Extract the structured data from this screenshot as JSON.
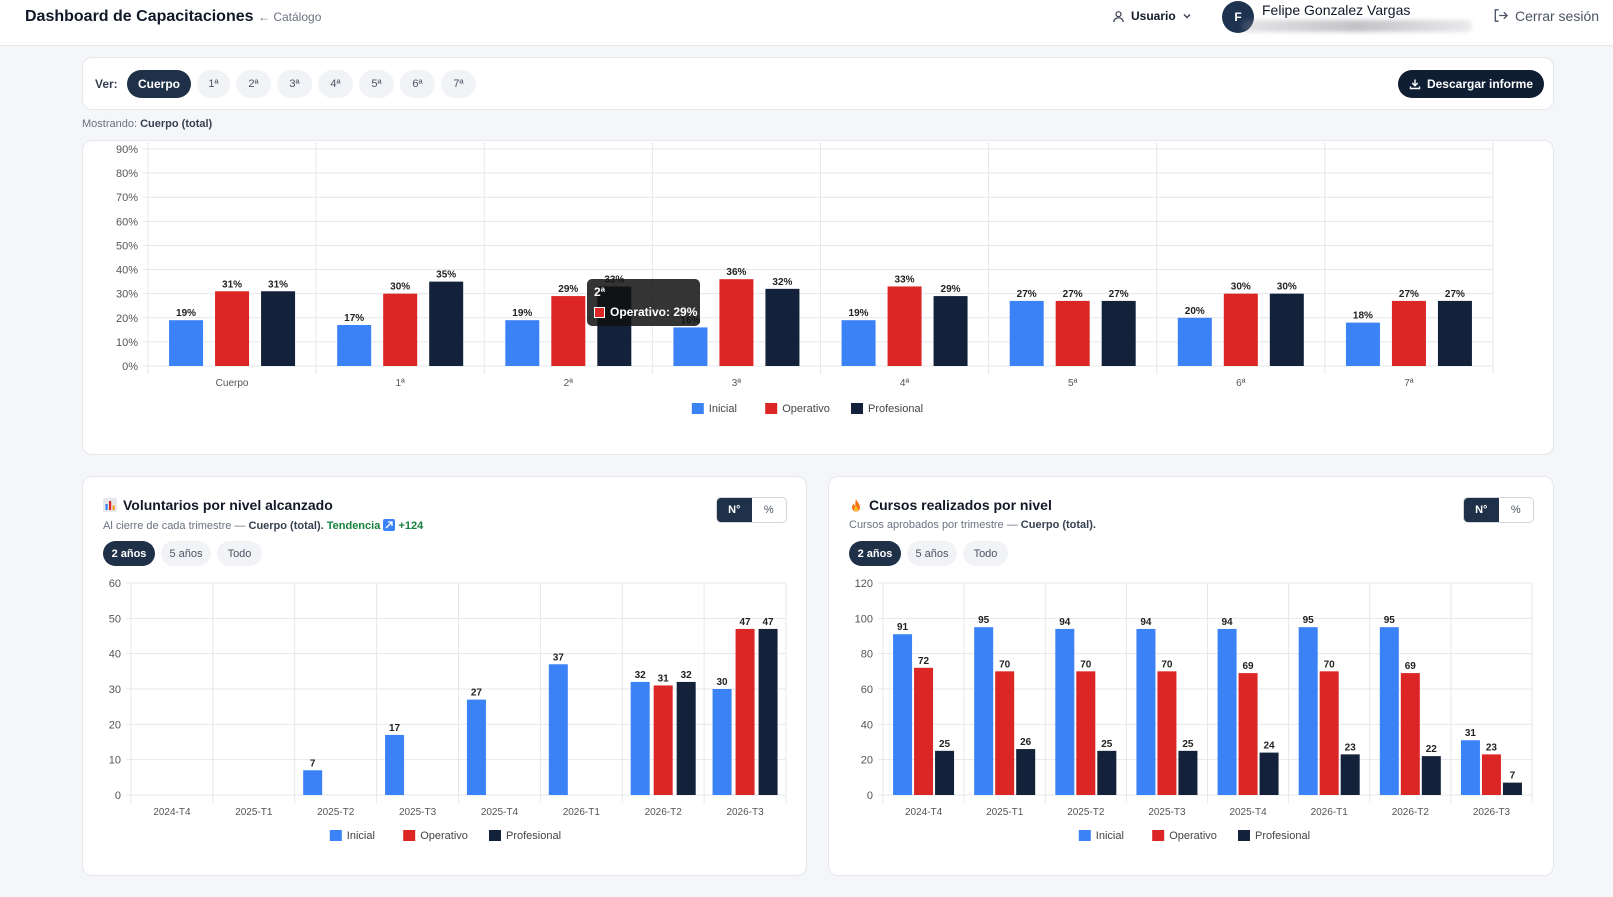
{
  "header": {
    "title": "Dashboard de Capacitaciones",
    "back_link": "← Catálogo",
    "user_menu": "Usuario",
    "avatar_initial": "F",
    "user_name": "Felipe Gonzalez Vargas",
    "logout": "Cerrar sesión"
  },
  "filter": {
    "label": "Ver:",
    "options": [
      "Cuerpo",
      "1ª",
      "2ª",
      "3ª",
      "4ª",
      "5ª",
      "6ª",
      "7ª"
    ],
    "selected": "Cuerpo",
    "download": "Descargar informe",
    "showing_label": "Mostrando:",
    "showing_value": "Cuerpo (total)"
  },
  "colors": {
    "inicial": "#3b82f6",
    "operativo": "#dc2626",
    "profesional": "#13213a"
  },
  "tooltip": {
    "title": "2ª",
    "text": "Operativo: 29%"
  },
  "voluntarios": {
    "icon": "bar-chart-icon",
    "title": "Voluntarios por nivel alcanzado",
    "subtitle_prefix": "Al cierre de cada trimestre —",
    "subtitle_bold": "Cuerpo (total).",
    "trend_label": "Tendencia",
    "trend_value": "+124",
    "toggle": [
      "N°",
      "%"
    ],
    "ranges": [
      "2 años",
      "5 años",
      "Todo"
    ]
  },
  "cursos": {
    "icon": "fire-icon",
    "title": "Cursos realizados por nivel",
    "subtitle_prefix": "Cursos aprobados por trimestre —",
    "subtitle_bold": "Cuerpo (total).",
    "toggle": [
      "N°",
      "%"
    ],
    "ranges": [
      "2 años",
      "5 años",
      "Todo"
    ]
  },
  "chart_data": [
    {
      "type": "bar",
      "categories": [
        "Cuerpo",
        "1ª",
        "2ª",
        "3ª",
        "4ª",
        "5ª",
        "6ª",
        "7ª"
      ],
      "series": [
        {
          "name": "Inicial",
          "values": [
            19,
            17,
            19,
            16,
            19,
            27,
            20,
            18
          ]
        },
        {
          "name": "Operativo",
          "values": [
            31,
            30,
            29,
            36,
            33,
            27,
            30,
            27
          ]
        },
        {
          "name": "Profesional",
          "values": [
            31,
            35,
            33,
            32,
            29,
            27,
            30,
            27
          ]
        }
      ],
      "y_ticks": [
        "0%",
        "10%",
        "20%",
        "30%",
        "40%",
        "50%",
        "60%",
        "70%",
        "80%",
        "90%"
      ],
      "data_labels": [
        [
          "19%",
          "17%",
          "19%",
          "16%",
          "19%",
          "27%",
          "20%",
          "18%"
        ],
        [
          "31%",
          "30%",
          "29%",
          "36%",
          "33%",
          "27%",
          "30%",
          "27%"
        ],
        [
          "31%",
          "35%",
          "33%",
          "32%",
          "29%",
          "27%",
          "30%",
          "27%"
        ]
      ],
      "ylim": [
        0,
        90
      ],
      "legend": "bottom",
      "grid": true
    },
    {
      "type": "bar",
      "categories": [
        "2024-T4",
        "2025-T1",
        "2025-T2",
        "2025-T3",
        "2025-T4",
        "2026-T1",
        "2026-T2",
        "2026-T3"
      ],
      "series": [
        {
          "name": "Inicial",
          "values": [
            0,
            0,
            7,
            17,
            27,
            37,
            32,
            30
          ]
        },
        {
          "name": "Operativo",
          "values": [
            0,
            0,
            0,
            0,
            0,
            0,
            31,
            47
          ]
        },
        {
          "name": "Profesional",
          "values": [
            0,
            0,
            0,
            0,
            0,
            0,
            32,
            47
          ]
        }
      ],
      "y_ticks": [
        "0",
        "10",
        "20",
        "30",
        "40",
        "50",
        "60"
      ],
      "ylim": [
        0,
        60
      ],
      "legend": "bottom",
      "grid": true
    },
    {
      "type": "bar",
      "categories": [
        "2024-T4",
        "2025-T1",
        "2025-T2",
        "2025-T3",
        "2025-T4",
        "2026-T1",
        "2026-T2",
        "2026-T3"
      ],
      "series": [
        {
          "name": "Inicial",
          "values": [
            91,
            95,
            94,
            94,
            94,
            95,
            95,
            31
          ]
        },
        {
          "name": "Operativo",
          "values": [
            72,
            70,
            70,
            70,
            69,
            70,
            69,
            23
          ]
        },
        {
          "name": "Profesional",
          "values": [
            25,
            26,
            25,
            25,
            24,
            23,
            22,
            7
          ]
        }
      ],
      "y_ticks": [
        "0",
        "20",
        "40",
        "60",
        "80",
        "100",
        "120"
      ],
      "ylim": [
        0,
        120
      ],
      "legend": "bottom",
      "grid": true
    }
  ]
}
